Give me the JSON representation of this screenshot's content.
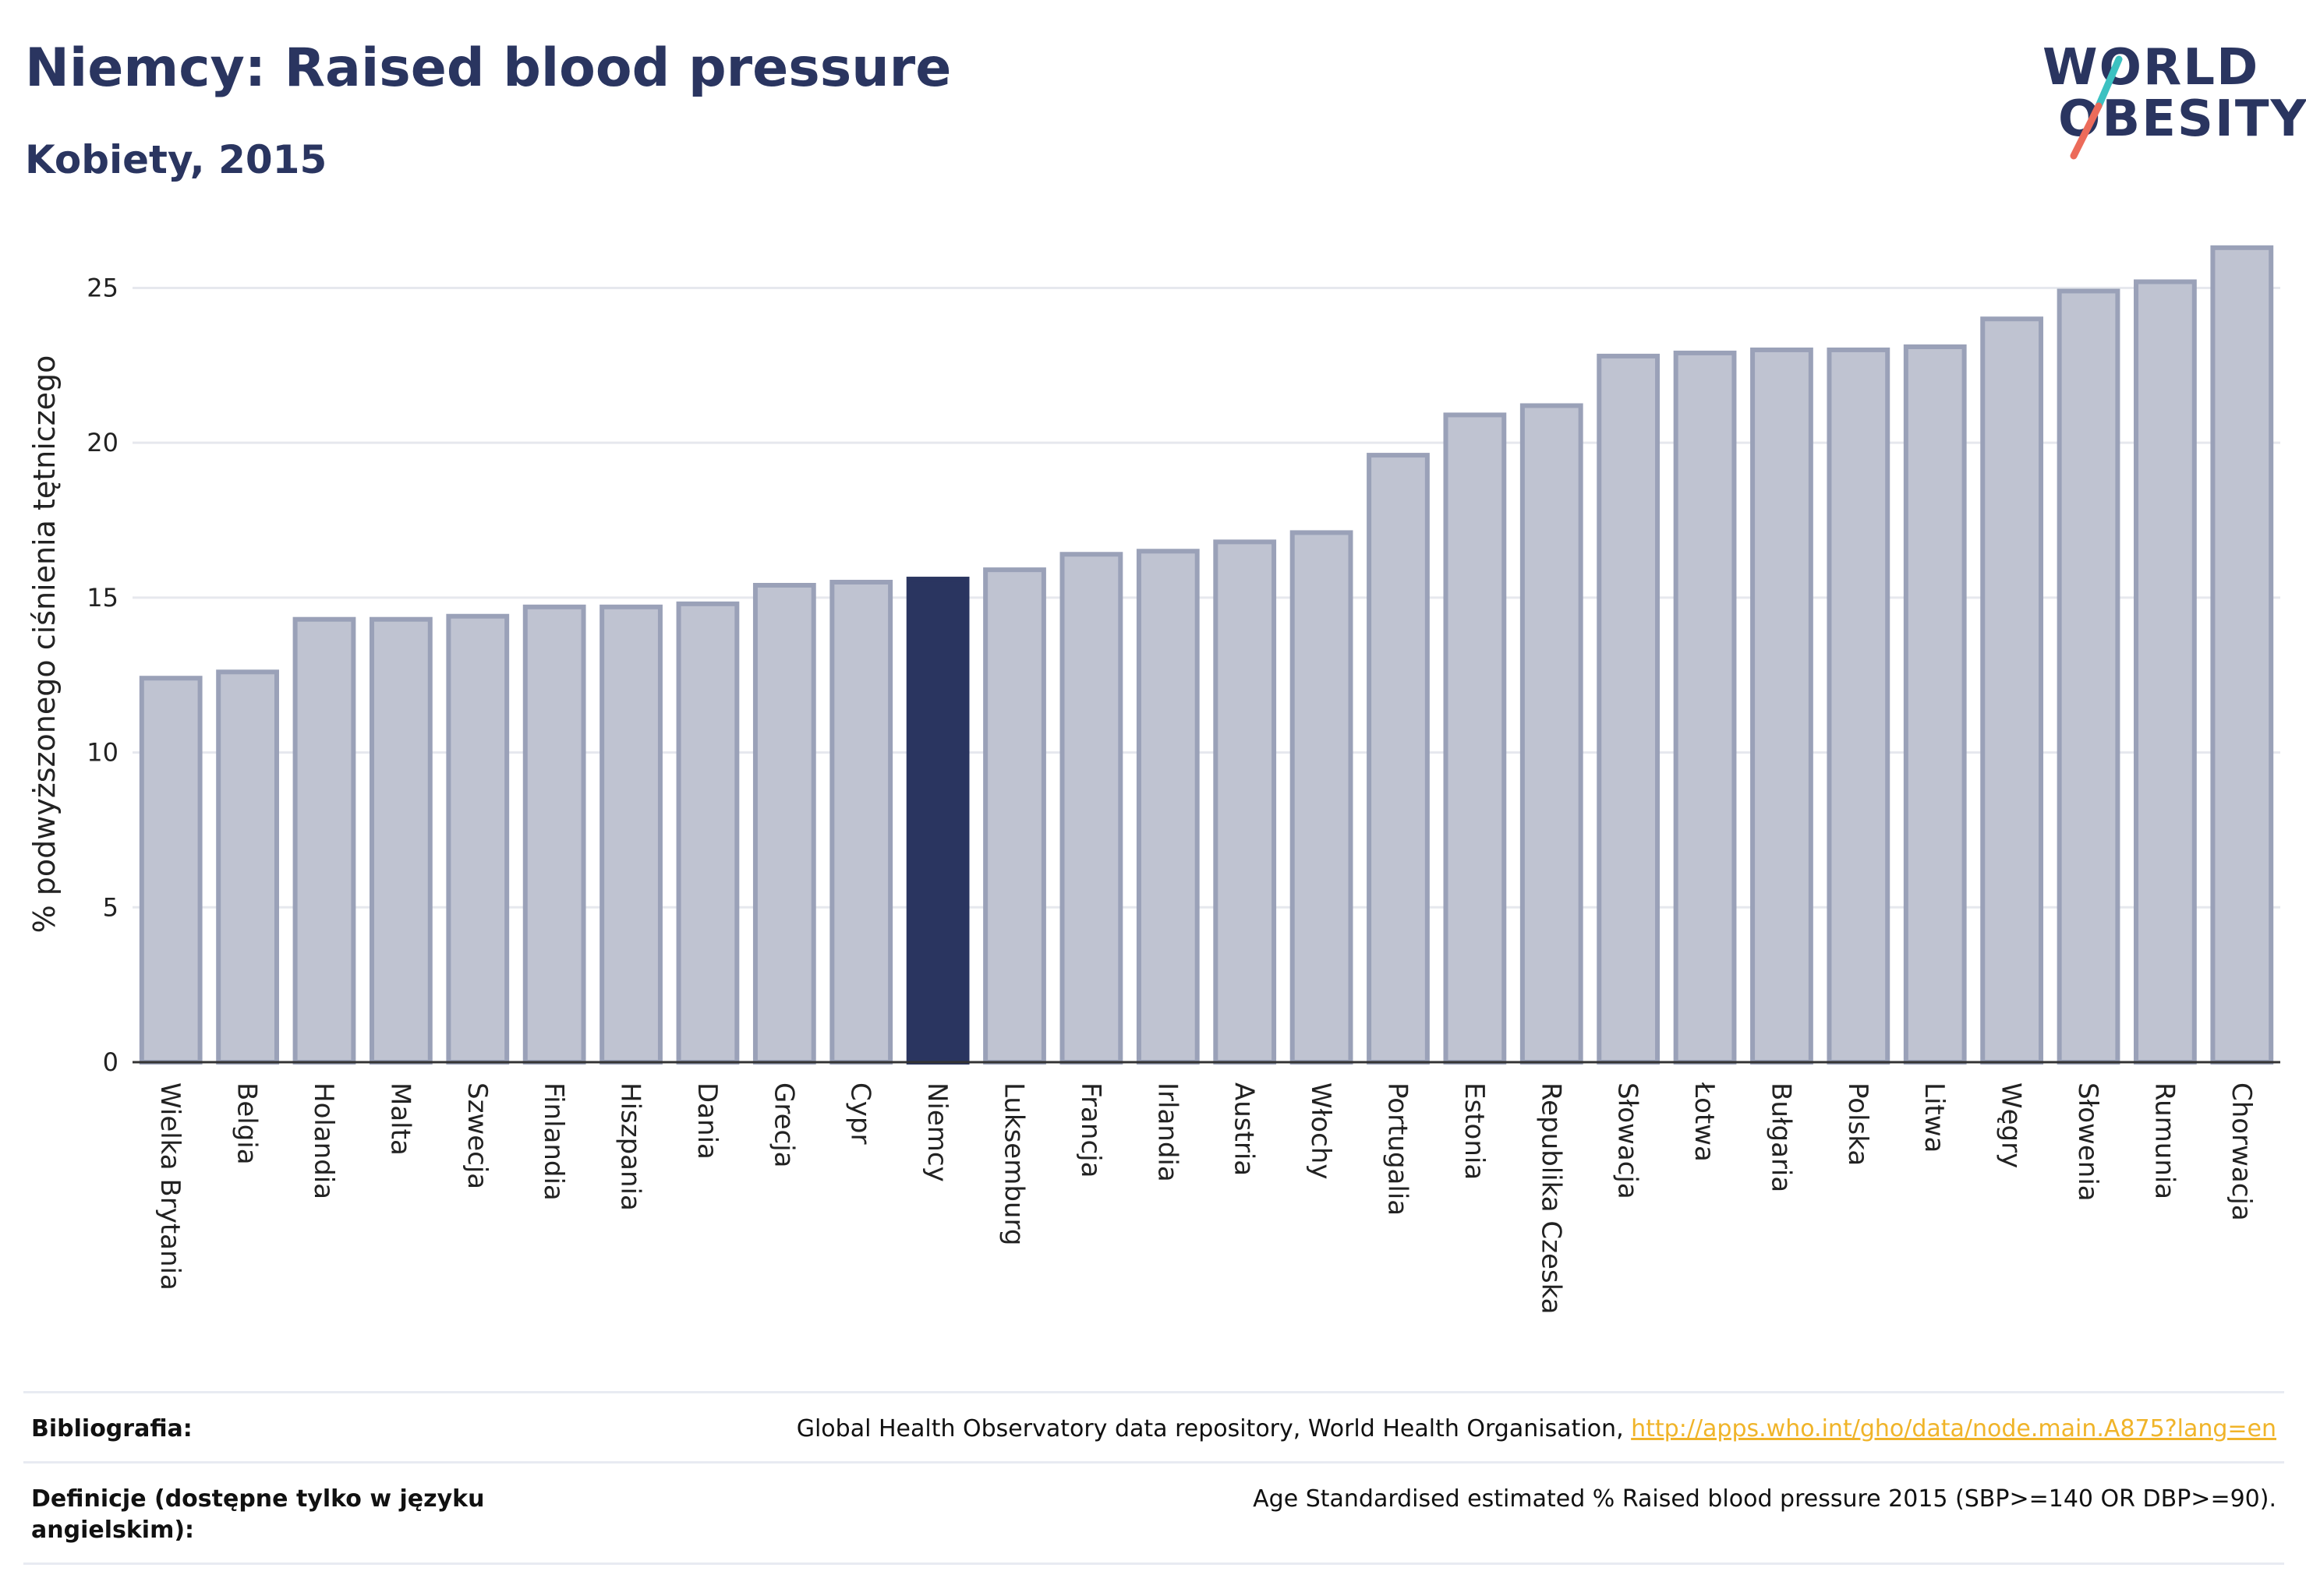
{
  "header": {
    "title": "Niemcy: Raised blood pressure",
    "subtitle": "Kobiety, 2015"
  },
  "logo": {
    "line1": "WORLD",
    "line2": "OBESITY",
    "accent_teal": "#3cc1c1",
    "accent_coral": "#ec6b5a"
  },
  "colors": {
    "bar": "#bfc3d1",
    "bar_stroke": "#9aa1b8",
    "highlight": "#2a3560",
    "text": "#2a3560"
  },
  "chart_data": {
    "type": "bar",
    "ylabel": "% podwyższonego ciśnienia tętniczego",
    "ylim": [
      0,
      27
    ],
    "yticks": [
      0,
      5,
      10,
      15,
      20,
      25
    ],
    "grid": true,
    "highlight": "Niemcy",
    "categories": [
      "Wielka Brytania",
      "Belgia",
      "Holandia",
      "Malta",
      "Szwecja",
      "Finlandia",
      "Hiszpania",
      "Dania",
      "Grecja",
      "Cypr",
      "Niemcy",
      "Luksemburg",
      "Francja",
      "Irlandia",
      "Austria",
      "Włochy",
      "Portugalia",
      "Estonia",
      "Republika Czeska",
      "Słowacja",
      "Łotwa",
      "Bułgaria",
      "Polska",
      "Litwa",
      "Węgry",
      "Słowenia",
      "Rumunia",
      "Chorwacja"
    ],
    "values": [
      12.4,
      12.6,
      14.3,
      14.3,
      14.4,
      14.7,
      14.7,
      14.8,
      15.4,
      15.5,
      15.6,
      15.9,
      16.4,
      16.5,
      16.8,
      17.1,
      19.6,
      20.9,
      21.2,
      22.8,
      22.9,
      23.0,
      23.0,
      23.1,
      24.0,
      24.9,
      25.2,
      26.3
    ]
  },
  "footer": {
    "bibliography_label": "Bibliografia:",
    "bibliography_text": "Global Health Observatory data repository, World Health Organisation, ",
    "bibliography_link": "http://apps.who.int/gho/data/node.main.A875?lang=en",
    "definitions_label": "Definicje (dostępne tylko w języku angielskim):",
    "definitions_text": "Age Standardised estimated % Raised blood pressure 2015 (SBP>=140 OR DBP>=90)."
  }
}
